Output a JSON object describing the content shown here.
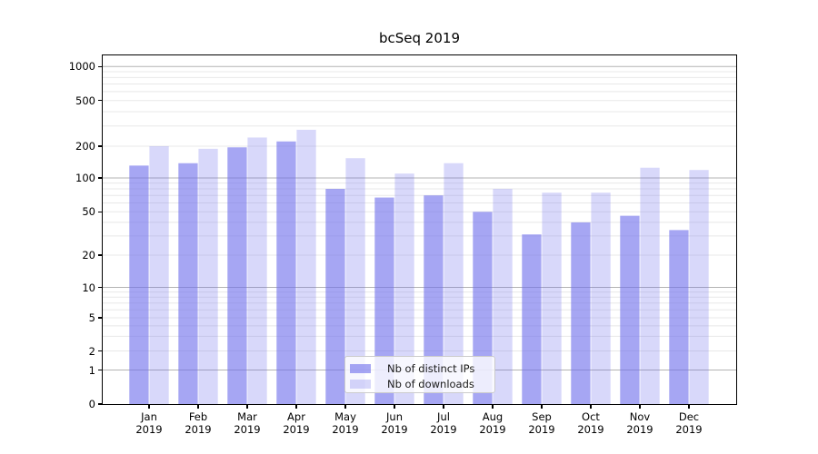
{
  "chart_data": {
    "type": "bar",
    "title": "bcSeq 2019",
    "categories": [
      {
        "month": "Jan",
        "year": "2019"
      },
      {
        "month": "Feb",
        "year": "2019"
      },
      {
        "month": "Mar",
        "year": "2019"
      },
      {
        "month": "Apr",
        "year": "2019"
      },
      {
        "month": "May",
        "year": "2019"
      },
      {
        "month": "Jun",
        "year": "2019"
      },
      {
        "month": "Jul",
        "year": "2019"
      },
      {
        "month": "Aug",
        "year": "2019"
      },
      {
        "month": "Sep",
        "year": "2019"
      },
      {
        "month": "Oct",
        "year": "2019"
      },
      {
        "month": "Nov",
        "year": "2019"
      },
      {
        "month": "Dec",
        "year": "2019"
      }
    ],
    "series": [
      {
        "name": "Nb of distinct IPs",
        "rendered_color": "#a6a6f2",
        "fill": "rgba(111,111,236,0.62)",
        "values": [
          131,
          138,
          195,
          220,
          80,
          67,
          70,
          50,
          31,
          40,
          46,
          34
        ]
      },
      {
        "name": "Nb of downloads",
        "rendered_color": "#d9d9f9",
        "fill": "rgba(111,111,236,0.27)",
        "values": [
          200,
          189,
          238,
          278,
          154,
          110,
          138,
          80,
          74,
          74,
          125,
          119
        ]
      }
    ],
    "yscale": "symlog",
    "y_tick_labels": [
      "0",
      "1",
      "2",
      "5",
      "10",
      "20",
      "50",
      "100",
      "200",
      "500",
      "1000"
    ],
    "ylim": [
      0,
      1270
    ],
    "grid": true,
    "grid_major_color": "#b3b3b3",
    "grid_minor_color": "#e8e8e8",
    "legend_position": "lower center",
    "background_color": "#ffffff",
    "spine_color": "#000000"
  }
}
